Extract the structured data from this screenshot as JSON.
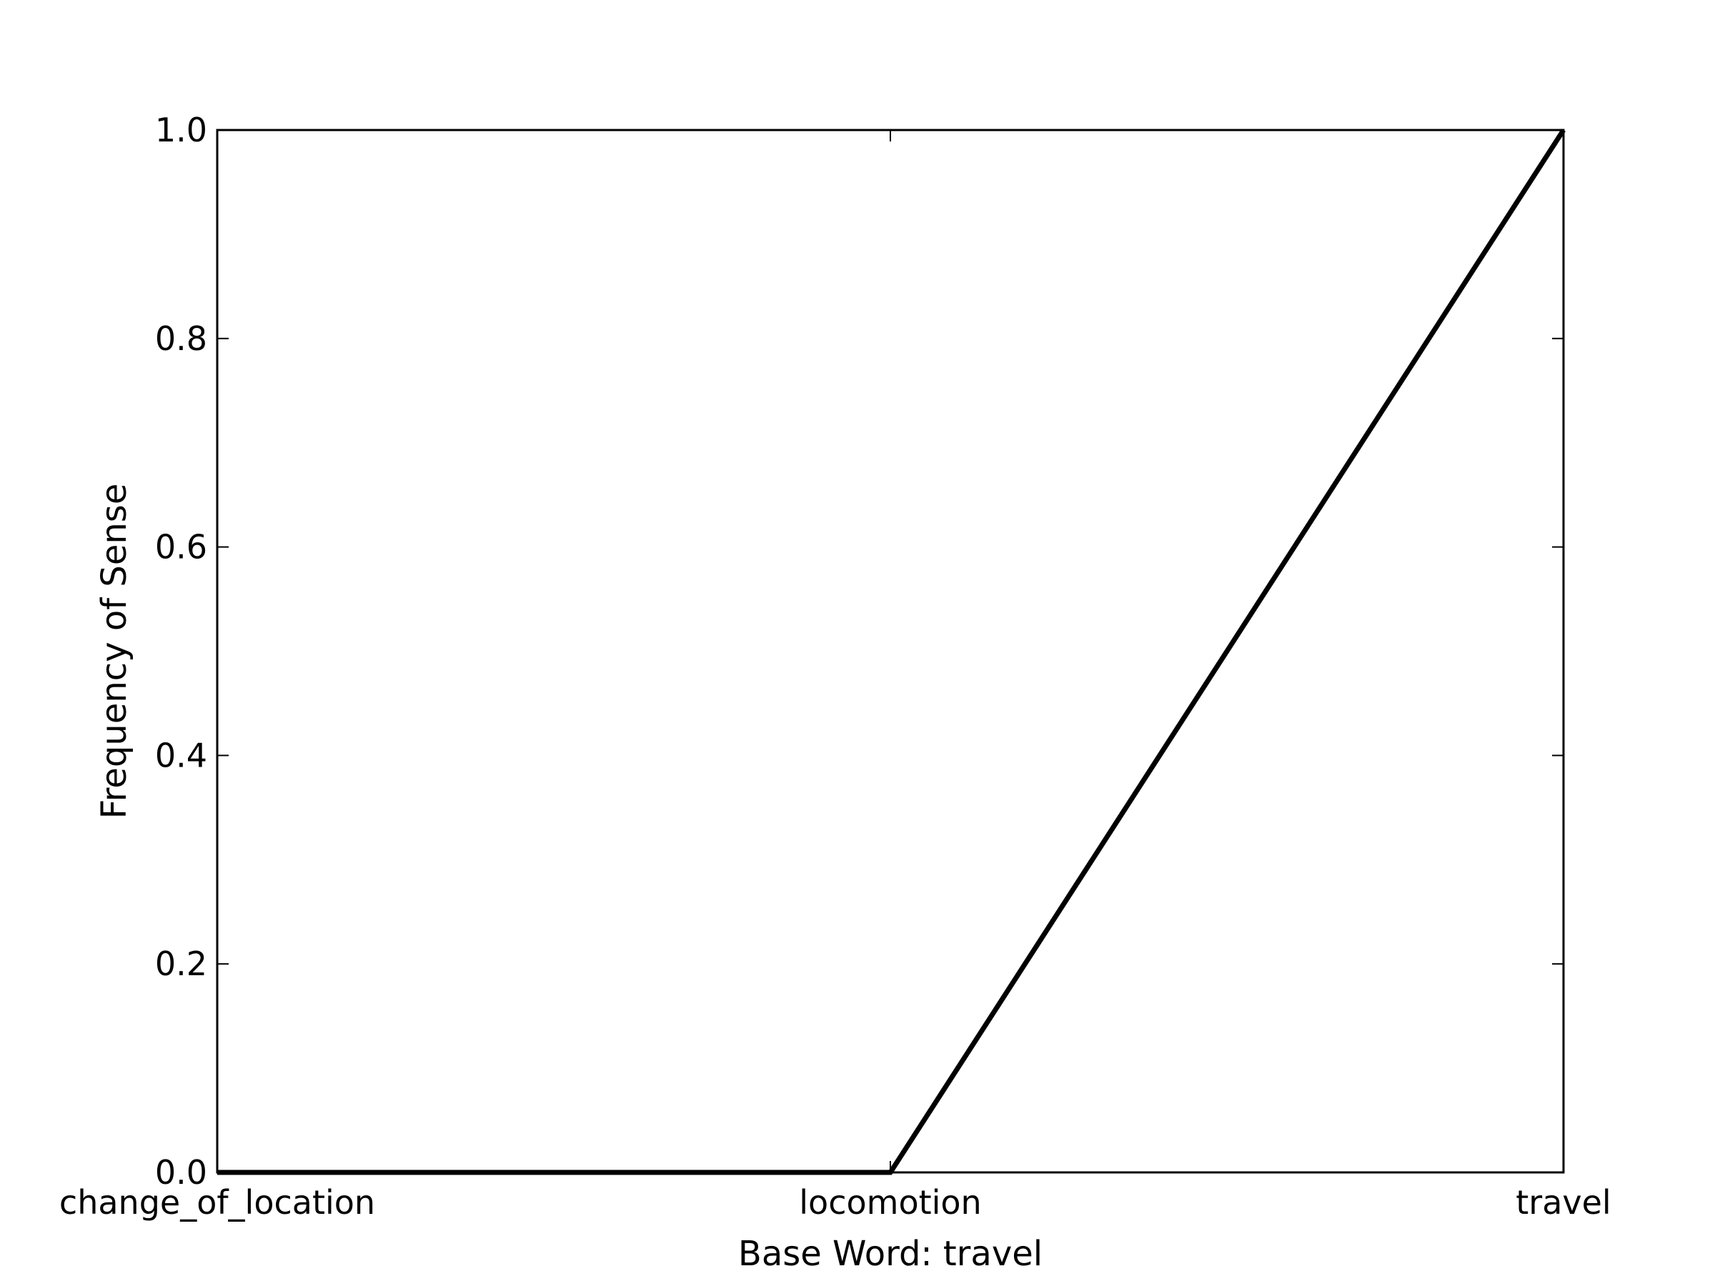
{
  "chart_data": {
    "type": "line",
    "title": "",
    "xlabel": "Base Word: travel",
    "ylabel": "Frequency of Sense",
    "categories": [
      "change_of_location",
      "locomotion",
      "travel"
    ],
    "series": [
      {
        "values": [
          0.0,
          0.0,
          1.0
        ],
        "color": "#000000"
      }
    ],
    "ylim": [
      0.0,
      1.0
    ],
    "yticks": [
      0.0,
      0.2,
      0.4,
      0.6,
      0.8,
      1.0
    ],
    "ytick_labels": [
      "0.0",
      "0.2",
      "0.4",
      "0.6",
      "0.8",
      "1.0"
    ],
    "grid": false,
    "legend": "none"
  }
}
